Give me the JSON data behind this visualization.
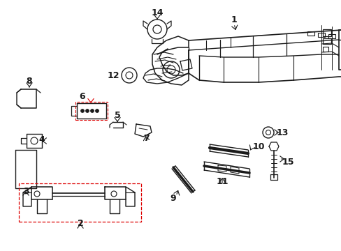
{
  "background_color": "#ffffff",
  "line_color": "#1a1a1a",
  "red_color": "#dd0000",
  "figsize": [
    4.89,
    3.6
  ],
  "dpi": 100
}
